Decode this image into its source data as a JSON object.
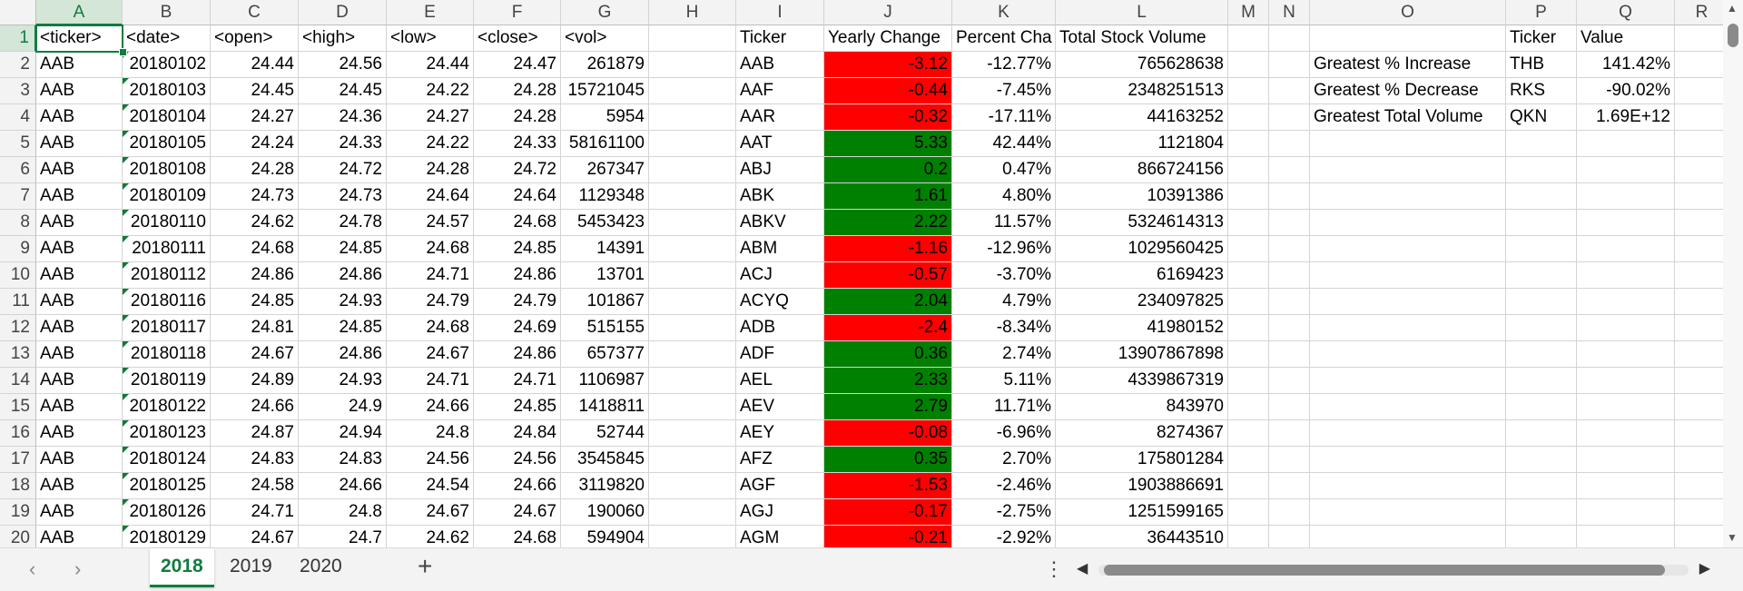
{
  "columns": [
    "A",
    "B",
    "C",
    "D",
    "E",
    "F",
    "G",
    "H",
    "I",
    "J",
    "K",
    "L",
    "M",
    "N",
    "O",
    "P",
    "Q",
    "R"
  ],
  "selected_column": "A",
  "selected_row": 1,
  "raw_headers": [
    "<ticker>",
    "<date>",
    "<open>",
    "<high>",
    "<low>",
    "<close>",
    "<vol>"
  ],
  "raw_rows": [
    [
      "AAB",
      "20180102",
      "24.44",
      "24.56",
      "24.44",
      "24.47",
      "261879"
    ],
    [
      "AAB",
      "20180103",
      "24.45",
      "24.45",
      "24.22",
      "24.28",
      "15721045"
    ],
    [
      "AAB",
      "20180104",
      "24.27",
      "24.36",
      "24.27",
      "24.28",
      "5954"
    ],
    [
      "AAB",
      "20180105",
      "24.24",
      "24.33",
      "24.22",
      "24.33",
      "58161100"
    ],
    [
      "AAB",
      "20180108",
      "24.28",
      "24.72",
      "24.28",
      "24.72",
      "267347"
    ],
    [
      "AAB",
      "20180109",
      "24.73",
      "24.73",
      "24.64",
      "24.64",
      "1129348"
    ],
    [
      "AAB",
      "20180110",
      "24.62",
      "24.78",
      "24.57",
      "24.68",
      "5453423"
    ],
    [
      "AAB",
      "20180111",
      "24.68",
      "24.85",
      "24.68",
      "24.85",
      "14391"
    ],
    [
      "AAB",
      "20180112",
      "24.86",
      "24.86",
      "24.71",
      "24.86",
      "13701"
    ],
    [
      "AAB",
      "20180116",
      "24.85",
      "24.93",
      "24.79",
      "24.79",
      "101867"
    ],
    [
      "AAB",
      "20180117",
      "24.81",
      "24.85",
      "24.68",
      "24.69",
      "515155"
    ],
    [
      "AAB",
      "20180118",
      "24.67",
      "24.86",
      "24.67",
      "24.86",
      "657377"
    ],
    [
      "AAB",
      "20180119",
      "24.89",
      "24.93",
      "24.71",
      "24.71",
      "1106987"
    ],
    [
      "AAB",
      "20180122",
      "24.66",
      "24.9",
      "24.66",
      "24.85",
      "1418811"
    ],
    [
      "AAB",
      "20180123",
      "24.87",
      "24.94",
      "24.8",
      "24.84",
      "52744"
    ],
    [
      "AAB",
      "20180124",
      "24.83",
      "24.83",
      "24.56",
      "24.56",
      "3545845"
    ],
    [
      "AAB",
      "20180125",
      "24.58",
      "24.66",
      "24.54",
      "24.66",
      "3119820"
    ],
    [
      "AAB",
      "20180126",
      "24.71",
      "24.8",
      "24.67",
      "24.67",
      "190060"
    ],
    [
      "AAB",
      "20180129",
      "24.67",
      "24.7",
      "24.62",
      "24.68",
      "594904"
    ]
  ],
  "summary_headers": [
    "Ticker",
    "Yearly Change",
    "Percent Cha",
    "Total Stock Volume"
  ],
  "summary_rows": [
    [
      "AAB",
      "-3.12",
      "-12.77%",
      "765628638"
    ],
    [
      "AAF",
      "-0.44",
      "-7.45%",
      "2348251513"
    ],
    [
      "AAR",
      "-0.32",
      "-17.11%",
      "44163252"
    ],
    [
      "AAT",
      "5.33",
      "42.44%",
      "1121804"
    ],
    [
      "ABJ",
      "0.2",
      "0.47%",
      "866724156"
    ],
    [
      "ABK",
      "1.61",
      "4.80%",
      "10391386"
    ],
    [
      "ABKV",
      "2.22",
      "11.57%",
      "5324614313"
    ],
    [
      "ABM",
      "-1.16",
      "-12.96%",
      "1029560425"
    ],
    [
      "ACJ",
      "-0.57",
      "-3.70%",
      "6169423"
    ],
    [
      "ACYQ",
      "2.04",
      "4.79%",
      "234097825"
    ],
    [
      "ADB",
      "-2.4",
      "-8.34%",
      "41980152"
    ],
    [
      "ADF",
      "0.36",
      "2.74%",
      "13907867898"
    ],
    [
      "AEL",
      "2.33",
      "5.11%",
      "4339867319"
    ],
    [
      "AEV",
      "2.79",
      "11.71%",
      "843970"
    ],
    [
      "AEY",
      "-0.08",
      "-6.96%",
      "8274367"
    ],
    [
      "AFZ",
      "0.35",
      "2.70%",
      "175801284"
    ],
    [
      "AGF",
      "-1.53",
      "-2.46%",
      "1903886691"
    ],
    [
      "AGJ",
      "-0.17",
      "-2.75%",
      "1251599165"
    ],
    [
      "AGM",
      "-0.21",
      "-2.92%",
      "36443510"
    ]
  ],
  "greatest_headers": [
    "Ticker",
    "Value"
  ],
  "greatest_rows": [
    [
      "Greatest % Increase",
      "THB",
      "141.42%"
    ],
    [
      "Greatest % Decrease",
      "RKS",
      "-90.02%"
    ],
    [
      "Greatest Total Volume",
      "QKN",
      "1.69E+12"
    ]
  ],
  "colors": {
    "positive": "#008000",
    "negative": "#ff0000",
    "accent": "#107c41"
  },
  "sheet_tabs": [
    "2018",
    "2019",
    "2020"
  ],
  "active_tab": "2018",
  "icons": {
    "prev": "chevron-left-icon",
    "next": "chevron-right-icon",
    "add": "plus-icon",
    "more": "more-vert-icon",
    "prev_glyph": "‹",
    "next_glyph": "›",
    "add_glyph": "+",
    "more_glyph": "⋮"
  }
}
